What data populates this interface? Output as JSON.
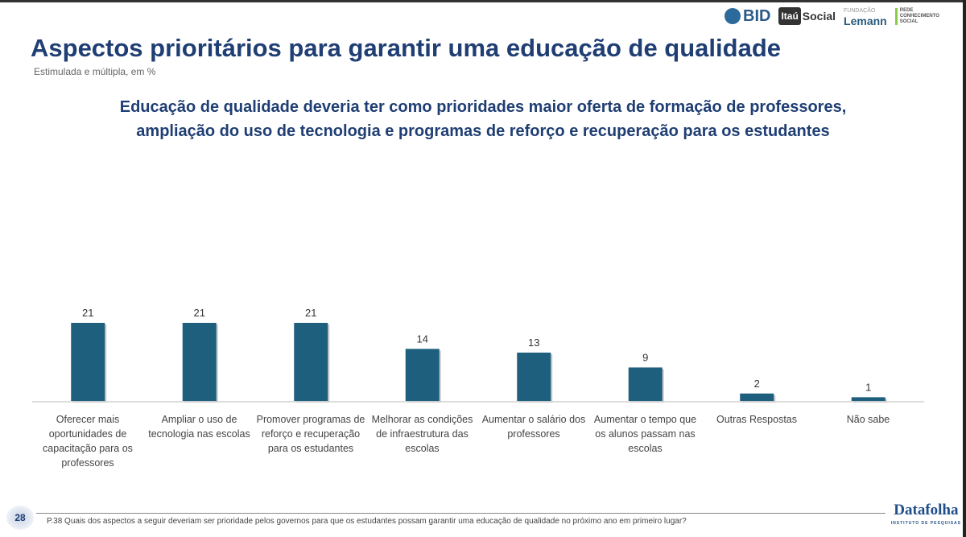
{
  "header": {
    "title": "Aspectos prioritários para garantir uma educação de qualidade",
    "subtitle": "Estimulada e múltipla, em %",
    "headline_line1": "Educação de qualidade deveria ter como prioridades maior oferta de formação de professores,",
    "headline_line2": "ampliação do uso de tecnologia e programas de reforço e recuperação para os estudantes"
  },
  "logos": {
    "bid": "BID",
    "itau_a": "Itaú",
    "itau_b": "Social",
    "lemann_small": "FUNDAÇÃO",
    "lemann": "Lemann",
    "rede": "REDE CONHECIMENTO SOCIAL"
  },
  "chart_data": {
    "type": "bar",
    "title": "",
    "xlabel": "",
    "ylabel": "",
    "ylim": [
      0,
      25
    ],
    "bar_color": "#1e5f7e",
    "categories": [
      "Oferecer mais oportunidades de capacitação para os professores",
      "Ampliar o uso de tecnologia nas escolas",
      "Promover programas de reforço e recuperação para os estudantes",
      "Melhorar as condições de infraestrutura das escolas",
      "Aumentar o salário dos professores",
      "Aumentar o tempo que os alunos passam nas escolas",
      "Outras Respostas",
      "Não sabe"
    ],
    "values": [
      21,
      21,
      21,
      14,
      13,
      9,
      2,
      1
    ]
  },
  "footer": {
    "page": "28",
    "question": "P.38 Quais dos aspectos a seguir deveriam ser prioridade pelos governos para que os estudantes possam garantir uma educação de qualidade no próximo ano em primeiro lugar?",
    "brand": "Datafolha",
    "brand_sub": "INSTITUTO DE PESQUISAS"
  }
}
